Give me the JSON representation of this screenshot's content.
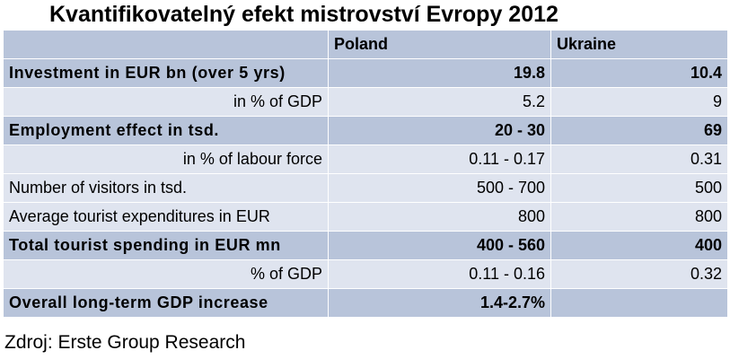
{
  "title": "Kvantifikovatelný efekt mistrovství Evropy 2012",
  "table": {
    "columns": [
      "",
      "Poland",
      "Ukraine"
    ],
    "rows": [
      {
        "label": "Investment in EUR bn (over 5 yrs)",
        "poland": "19.8",
        "ukraine": "10.4"
      },
      {
        "label": "in % of GDP",
        "poland": "5.2",
        "ukraine": "9"
      },
      {
        "label": "Employment effect in tsd.",
        "poland": "20 - 30",
        "ukraine": "69"
      },
      {
        "label": "in % of labour force",
        "poland": "0.11 - 0.17",
        "ukraine": "0.31"
      },
      {
        "label": "Number of visitors in tsd.",
        "poland": "500 - 700",
        "ukraine": "500"
      },
      {
        "label": "Average tourist expenditures in EUR",
        "poland": "800",
        "ukraine": "800"
      },
      {
        "label": "Total tourist spending in EUR mn",
        "poland": "400 - 560",
        "ukraine": "400"
      },
      {
        "label": "% of GDP",
        "poland": "0.11 - 0.16",
        "ukraine": "0.32"
      },
      {
        "label": "Overall long-term GDP increase",
        "poland": "1.4-2.7%",
        "ukraine": ""
      }
    ]
  },
  "source": "Zdroj: Erste Group Research",
  "colors": {
    "header_row": "#b8c4da",
    "bold_row": "#b8c4da",
    "plain_row": "#dfe4ef"
  }
}
